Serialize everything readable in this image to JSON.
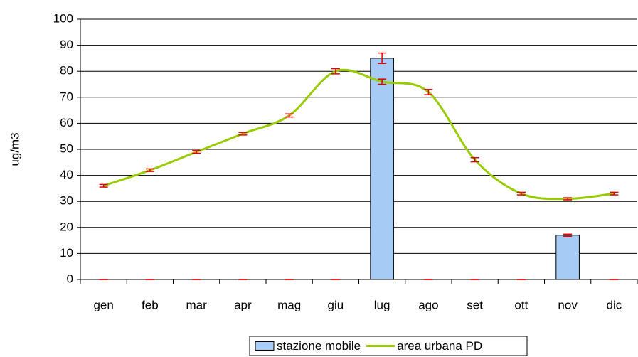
{
  "chart_data": {
    "type": "bar_line",
    "y_label": "ug/m3",
    "categories": [
      "gen",
      "feb",
      "mar",
      "apr",
      "mag",
      "giu",
      "lug",
      "ago",
      "set",
      "ott",
      "nov",
      "dic"
    ],
    "series": [
      {
        "name": "stazione mobile",
        "type": "bar",
        "color": "#a6ccf5",
        "values": [
          0,
          0,
          0,
          0,
          0,
          0,
          85,
          0,
          0,
          0,
          17,
          0
        ],
        "errors": [
          0,
          0,
          0,
          0,
          0,
          0,
          2,
          0,
          0,
          0,
          0.4,
          0
        ]
      },
      {
        "name": "area urbana PD",
        "type": "line",
        "color": "#99cc00",
        "values": [
          36,
          42,
          49,
          56,
          63,
          80,
          76,
          72,
          46,
          33,
          31,
          33
        ],
        "errors": [
          0.5,
          0.5,
          0.5,
          0.5,
          0.6,
          1,
          1,
          1,
          0.8,
          0.5,
          0.4,
          0.5
        ]
      }
    ],
    "error_color": "#e00000",
    "ylim": [
      0,
      100
    ],
    "yticks": [
      0,
      10,
      20,
      30,
      40,
      50,
      60,
      70,
      80,
      90,
      100
    ],
    "grid": true,
    "legend": "bottom"
  }
}
